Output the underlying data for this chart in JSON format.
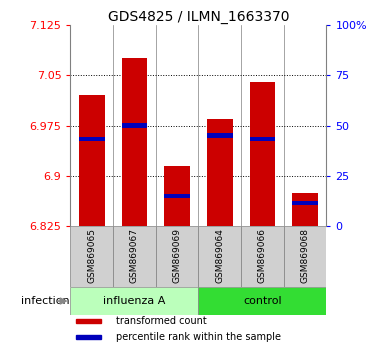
{
  "title": "GDS4825 / ILMN_1663370",
  "categories": [
    "GSM869065",
    "GSM869067",
    "GSM869069",
    "GSM869064",
    "GSM869066",
    "GSM869068"
  ],
  "bar_bottom": 6.825,
  "bar_tops": [
    7.02,
    7.075,
    6.915,
    6.985,
    7.04,
    6.875
  ],
  "blue_marker_values": [
    6.955,
    6.975,
    6.87,
    6.96,
    6.955,
    6.86
  ],
  "ylim": [
    6.825,
    7.125
  ],
  "yticks_left": [
    6.825,
    6.9,
    6.975,
    7.05,
    7.125
  ],
  "ytick_labels_left": [
    "6.825",
    "6.9",
    "6.975",
    "7.05",
    "7.125"
  ],
  "yticks_right_pct": [
    0,
    25,
    50,
    75,
    100
  ],
  "ytick_labels_right": [
    "0",
    "25",
    "50",
    "75",
    "100%"
  ],
  "bar_color": "#cc0000",
  "marker_color": "#0000bb",
  "group_bounds": [
    [
      0,
      3,
      "influenza A",
      "#bbffbb"
    ],
    [
      3,
      6,
      "control",
      "#33dd33"
    ]
  ],
  "infection_label": "infection",
  "legend_items": [
    {
      "color": "#cc0000",
      "label": "transformed count"
    },
    {
      "color": "#0000bb",
      "label": "percentile rank within the sample"
    }
  ],
  "title_fontsize": 10,
  "tick_fontsize": 8,
  "label_fontsize": 8.5
}
